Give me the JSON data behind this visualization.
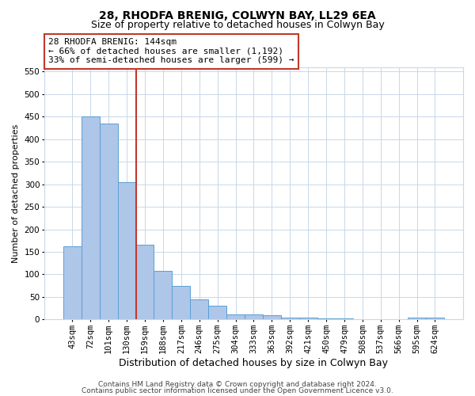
{
  "title": "28, RHODFA BRENIG, COLWYN BAY, LL29 6EA",
  "subtitle": "Size of property relative to detached houses in Colwyn Bay",
  "xlabel": "Distribution of detached houses by size in Colwyn Bay",
  "ylabel": "Number of detached properties",
  "categories": [
    "43sqm",
    "72sqm",
    "101sqm",
    "130sqm",
    "159sqm",
    "188sqm",
    "217sqm",
    "246sqm",
    "275sqm",
    "304sqm",
    "333sqm",
    "363sqm",
    "392sqm",
    "421sqm",
    "450sqm",
    "479sqm",
    "508sqm",
    "537sqm",
    "566sqm",
    "595sqm",
    "624sqm"
  ],
  "values": [
    163,
    450,
    435,
    305,
    166,
    107,
    74,
    44,
    31,
    11,
    11,
    9,
    5,
    4,
    2,
    2,
    1,
    1,
    1,
    4,
    4
  ],
  "bar_color": "#aec6e8",
  "bar_edge_color": "#5a9fd4",
  "vline_x_index": 3.5,
  "vline_color": "#c0392b",
  "annotation_text": "28 RHODFA BRENIG: 144sqm\n← 66% of detached houses are smaller (1,192)\n33% of semi-detached houses are larger (599) →",
  "annotation_box_color": "#ffffff",
  "annotation_box_edge": "#c0392b",
  "ylim": [
    0,
    560
  ],
  "yticks": [
    0,
    50,
    100,
    150,
    200,
    250,
    300,
    350,
    400,
    450,
    500,
    550
  ],
  "footer_line1": "Contains HM Land Registry data © Crown copyright and database right 2024.",
  "footer_line2": "Contains public sector information licensed under the Open Government Licence v3.0.",
  "background_color": "#ffffff",
  "grid_color": "#c8d8e8",
  "title_fontsize": 10,
  "subtitle_fontsize": 9,
  "xlabel_fontsize": 9,
  "ylabel_fontsize": 8,
  "tick_fontsize": 7.5,
  "annotation_fontsize": 8,
  "footer_fontsize": 6.5
}
